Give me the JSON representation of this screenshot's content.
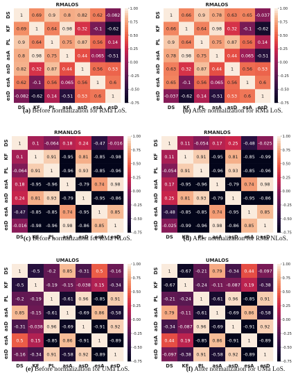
{
  "figure": {
    "labels": [
      "DS",
      "KF",
      "PL",
      "asA",
      "asD",
      "esA",
      "esD"
    ],
    "colorbar_ticks": [
      "1.00",
      "0.75",
      "0.50",
      "0.25",
      "0.00",
      "-0.25",
      "-0.50",
      "-0.75"
    ]
  },
  "chart_data": [
    {
      "type": "heatmap",
      "title": "RMALOS",
      "caption_letter": "(a)",
      "caption_text": "Before normalization for RMa LoS.",
      "xlabels": [
        "DS",
        "KF",
        "PL",
        "asA",
        "asD",
        "esA",
        "esD"
      ],
      "ylabels": [
        "DS",
        "KF",
        "PL",
        "asA",
        "asD",
        "esA",
        "esD"
      ],
      "values": [
        [
          1,
          0.69,
          0.9,
          0.8,
          0.82,
          0.62,
          -0.082
        ],
        [
          0.69,
          1,
          0.64,
          0.98,
          0.32,
          -0.1,
          -0.62
        ],
        [
          0.9,
          0.64,
          1,
          0.75,
          0.87,
          0.56,
          0.14
        ],
        [
          0.8,
          0.98,
          0.75,
          1,
          0.44,
          0.065,
          -0.51
        ],
        [
          0.82,
          0.32,
          0.87,
          0.44,
          1,
          0.56,
          0.53
        ],
        [
          0.62,
          -0.1,
          0.56,
          0.065,
          0.56,
          1,
          0.6
        ],
        [
          -0.082,
          -0.62,
          0.14,
          -0.51,
          0.53,
          0.6,
          1
        ]
      ],
      "colorbar": {
        "min": -0.75,
        "max": 1.0
      }
    },
    {
      "type": "heatmap",
      "title": "RMALOS",
      "caption_letter": "(b)",
      "caption_text": "After normalization for RMa LoS.",
      "xlabels": [
        "DS",
        "KF",
        "PL",
        "asA",
        "asD",
        "esA",
        "esD"
      ],
      "ylabels": [
        "DS",
        "KF",
        "PL",
        "asA",
        "asD",
        "esA",
        "esD"
      ],
      "values": [
        [
          1,
          0.66,
          0.9,
          0.78,
          0.63,
          0.65,
          -0.037
        ],
        [
          0.66,
          1,
          0.64,
          0.98,
          0.32,
          -0.1,
          -0.62
        ],
        [
          0.9,
          0.64,
          1,
          0.75,
          0.87,
          0.56,
          0.14
        ],
        [
          0.78,
          0.98,
          0.75,
          1,
          0.44,
          0.065,
          -0.51
        ],
        [
          0.63,
          0.32,
          0.87,
          0.44,
          1,
          0.56,
          0.53
        ],
        [
          0.65,
          -0.1,
          0.56,
          0.065,
          0.56,
          1,
          0.6
        ],
        [
          -0.037,
          -0.62,
          0.14,
          -0.51,
          0.53,
          0.6,
          1
        ]
      ],
      "colorbar": {
        "min": -0.75,
        "max": 1.0
      }
    },
    {
      "type": "heatmap",
      "title": "RMANLOS",
      "caption_letter": "(c)",
      "caption_text": "Before normalization for RMa NLoS.",
      "xlabels": [
        "DS",
        "KF",
        "PL",
        "asA",
        "asD",
        "esA",
        "esD"
      ],
      "ylabels": [
        "DS",
        "KF",
        "PL",
        "asA",
        "asD",
        "esA",
        "esD"
      ],
      "values": [
        [
          1,
          0.1,
          -0.064,
          0.18,
          0.24,
          -0.47,
          -0.016
        ],
        [
          0.1,
          1,
          0.91,
          -0.95,
          0.81,
          -0.85,
          -0.98
        ],
        [
          -0.064,
          0.91,
          1,
          -0.96,
          0.93,
          -0.85,
          -0.96
        ],
        [
          0.18,
          -0.95,
          -0.96,
          1,
          -0.79,
          0.74,
          0.98
        ],
        [
          0.24,
          0.81,
          0.93,
          -0.79,
          1,
          -0.95,
          -0.86
        ],
        [
          -0.47,
          -0.85,
          -0.85,
          0.74,
          -0.95,
          1,
          0.85
        ],
        [
          -0.016,
          -0.98,
          -0.96,
          0.98,
          -0.86,
          0.85,
          1
        ]
      ],
      "colorbar": {
        "min": -0.75,
        "max": 1.0
      }
    },
    {
      "type": "heatmap",
      "title": "RMANLOS",
      "caption_letter": "(d)",
      "caption_text": "After normalization for RMa NLoS.",
      "xlabels": [
        "DS",
        "KF",
        "PL",
        "asA",
        "asD",
        "esA",
        "esD"
      ],
      "ylabels": [
        "DS",
        "KF",
        "PL",
        "asA",
        "asD",
        "esA",
        "esD"
      ],
      "values": [
        [
          1,
          0.11,
          -0.054,
          0.17,
          0.25,
          -0.48,
          -0.025
        ],
        [
          0.11,
          1,
          0.91,
          -0.95,
          0.81,
          -0.85,
          -0.99
        ],
        [
          -0.054,
          0.91,
          1,
          -0.96,
          0.93,
          -0.85,
          -0.96
        ],
        [
          0.17,
          -0.95,
          -0.96,
          1,
          -0.79,
          0.74,
          0.98
        ],
        [
          0.25,
          0.81,
          0.93,
          -0.79,
          1,
          -0.95,
          -0.86
        ],
        [
          -0.48,
          -0.85,
          -0.85,
          0.74,
          -0.95,
          1,
          0.85
        ],
        [
          -0.025,
          -0.99,
          -0.96,
          0.98,
          -0.86,
          0.85,
          1
        ]
      ],
      "colorbar": {
        "min": -0.75,
        "max": 1.0
      }
    },
    {
      "type": "heatmap",
      "title": "UMALOS",
      "caption_letter": "(e)",
      "caption_text": "Before normalization for UMa LoS.",
      "xlabels": [
        "DS",
        "KF",
        "PL",
        "asA",
        "asD",
        "esA",
        "esD"
      ],
      "ylabels": [
        "DS",
        "KF",
        "PL",
        "asA",
        "asD",
        "esA",
        "esD"
      ],
      "values": [
        [
          1,
          -0.5,
          -0.2,
          0.85,
          -0.31,
          0.5,
          -0.16
        ],
        [
          -0.5,
          1,
          -0.19,
          -0.15,
          -0.038,
          0.15,
          -0.34
        ],
        [
          -0.2,
          -0.19,
          1,
          -0.61,
          0.96,
          -0.85,
          0.91
        ],
        [
          0.85,
          -0.15,
          -0.61,
          1,
          -0.69,
          0.86,
          -0.58
        ],
        [
          -0.31,
          -0.038,
          0.96,
          -0.69,
          1,
          -0.91,
          0.92
        ],
        [
          0.5,
          0.15,
          -0.85,
          0.86,
          -0.91,
          1,
          -0.89
        ],
        [
          -0.16,
          -0.34,
          0.91,
          -0.58,
          0.92,
          -0.89,
          1
        ]
      ],
      "colorbar": {
        "min": -0.75,
        "max": 1.0
      }
    },
    {
      "type": "heatmap",
      "title": "UMALOS",
      "caption_letter": "(f)",
      "caption_text": "After normalization for UMa LoS.",
      "xlabels": [
        "DS",
        "KF",
        "PL",
        "asA",
        "asD",
        "esA",
        "esD"
      ],
      "ylabels": [
        "DS",
        "KF",
        "PL",
        "asA",
        "asD",
        "esA",
        "esD"
      ],
      "values": [
        [
          1,
          -0.67,
          -0.21,
          0.79,
          -0.34,
          0.44,
          -0.097
        ],
        [
          -0.67,
          1,
          -0.24,
          -0.11,
          -0.087,
          0.19,
          -0.38
        ],
        [
          -0.21,
          -0.24,
          1,
          -0.61,
          0.96,
          -0.85,
          0.91
        ],
        [
          0.79,
          -0.11,
          -0.61,
          1,
          -0.69,
          0.86,
          -0.58
        ],
        [
          -0.34,
          -0.087,
          0.96,
          -0.69,
          1,
          -0.91,
          0.92
        ],
        [
          0.44,
          0.19,
          -0.85,
          0.86,
          -0.91,
          1,
          -0.89
        ],
        [
          -0.097,
          -0.38,
          0.91,
          -0.58,
          0.92,
          -0.89,
          1
        ]
      ],
      "colorbar": {
        "min": -0.75,
        "max": 1.0
      }
    }
  ]
}
